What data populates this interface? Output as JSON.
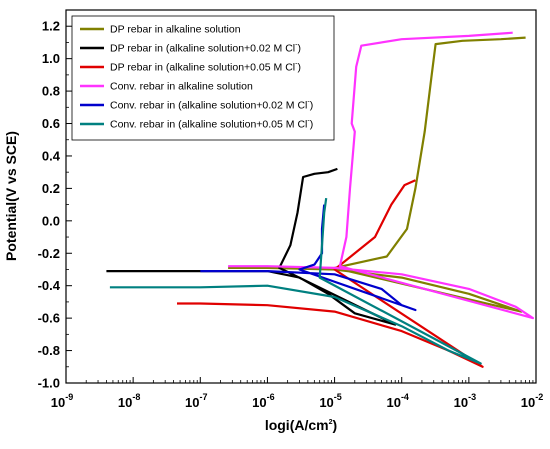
{
  "chart_data": {
    "type": "line",
    "xlabel": "logi(A/cm",
    "xlabel_sup": "2",
    "xlabel_tail": ")",
    "ylabel": "Potential(V vs SCE)",
    "x_scale": "log",
    "xlim": [
      1e-09,
      0.01
    ],
    "ylim": [
      -1.0,
      1.3
    ],
    "x_ticks": [
      1e-09,
      1e-08,
      1e-07,
      1e-06,
      1e-05,
      0.0001,
      0.001,
      0.01
    ],
    "x_tick_base": "10",
    "x_tick_exps": [
      "-9",
      "-8",
      "-7",
      "-6",
      "-5",
      "-4",
      "-3",
      "-2"
    ],
    "y_ticks": [
      -1.0,
      -0.8,
      -0.6,
      -0.4,
      -0.2,
      0.0,
      0.2,
      0.4,
      0.6,
      0.8,
      1.0,
      1.2
    ],
    "y_tick_labels": [
      "-1.0",
      "-0.8",
      "-0.6",
      "-0.4",
      "-0.2",
      "0.0",
      "0.2",
      "0.4",
      "0.6",
      "0.8",
      "1.0",
      "1.2"
    ],
    "grid": false,
    "legend_position": "top-left",
    "series": [
      {
        "name": "DP rebar in alkaline solution",
        "color": "#808000",
        "points": [
          [
            2.6e-07,
            -0.29
          ],
          [
            1e-06,
            -0.29
          ],
          [
            1e-05,
            -0.3
          ],
          [
            0.0001,
            -0.35
          ],
          [
            0.001,
            -0.45
          ],
          [
            0.006,
            -0.56
          ],
          [
            1e-05,
            -0.29
          ],
          [
            6e-05,
            -0.22
          ],
          [
            0.00012,
            -0.05
          ],
          [
            0.00016,
            0.2
          ],
          [
            0.00022,
            0.55
          ],
          [
            0.00028,
            0.9
          ],
          [
            0.00032,
            1.09
          ],
          [
            0.0008,
            1.11
          ],
          [
            0.003,
            1.12
          ],
          [
            0.007,
            1.13
          ]
        ]
      },
      {
        "name": "DP  rebar in (alkaline solution+0.02 M Cl",
        "name_sup": "-",
        "name_tail": ")",
        "color": "#000000",
        "points": [
          [
            4e-09,
            -0.31
          ],
          [
            1e-08,
            -0.31
          ],
          [
            1e-07,
            -0.31
          ],
          [
            1e-06,
            -0.31
          ],
          [
            3e-06,
            -0.35
          ],
          [
            8e-06,
            -0.45
          ],
          [
            2e-05,
            -0.57
          ],
          [
            8e-05,
            -0.64
          ],
          [
            1.5e-06,
            -0.29
          ],
          [
            2.2e-06,
            -0.15
          ],
          [
            2.8e-06,
            0.05
          ],
          [
            3.4e-06,
            0.27
          ],
          [
            5e-06,
            0.29
          ],
          [
            8e-06,
            0.3
          ],
          [
            1.1e-05,
            0.32
          ]
        ]
      },
      {
        "name": "DP  rebar in (alkaline solution+0.05 M Cl",
        "name_sup": "-",
        "name_tail": ")",
        "color": "#e00000",
        "points": [
          [
            4.5e-08,
            -0.51
          ],
          [
            1e-07,
            -0.51
          ],
          [
            1e-06,
            -0.52
          ],
          [
            1e-05,
            -0.56
          ],
          [
            0.0001,
            -0.68
          ],
          [
            0.0005,
            -0.8
          ],
          [
            0.0016,
            -0.9
          ],
          [
            1e-05,
            -0.3
          ],
          [
            4e-05,
            -0.1
          ],
          [
            7e-05,
            0.1
          ],
          [
            0.00011,
            0.22
          ],
          [
            0.00016,
            0.25
          ]
        ]
      },
      {
        "name": "Conv. rebar in alkaline solution",
        "color": "#ff33ff",
        "points": [
          [
            2.6e-07,
            -0.28
          ],
          [
            1e-06,
            -0.28
          ],
          [
            1e-05,
            -0.29
          ],
          [
            0.0001,
            -0.33
          ],
          [
            0.001,
            -0.42
          ],
          [
            0.005,
            -0.53
          ],
          [
            0.009,
            -0.6
          ],
          [
            1.2e-05,
            -0.28
          ],
          [
            1.5e-05,
            -0.1
          ],
          [
            1.7e-05,
            0.2
          ],
          [
            2e-05,
            0.55
          ],
          [
            1.8e-05,
            0.6
          ],
          [
            2.1e-05,
            0.95
          ],
          [
            2.5e-05,
            1.08
          ],
          [
            0.0001,
            1.12
          ],
          [
            0.001,
            1.14
          ],
          [
            0.0045,
            1.16
          ]
        ]
      },
      {
        "name": "Conv. rebar in (alkaline solution+0.02 M Cl",
        "name_sup": "-",
        "name_tail": ")",
        "color": "#0000cc",
        "points": [
          [
            1e-07,
            -0.31
          ],
          [
            1e-06,
            -0.31
          ],
          [
            1e-05,
            -0.33
          ],
          [
            5e-05,
            -0.42
          ],
          [
            0.0001,
            -0.52
          ],
          [
            0.00016,
            -0.55
          ],
          [
            3e-06,
            -0.3
          ],
          [
            5e-06,
            -0.27
          ],
          [
            6.5e-06,
            -0.2
          ],
          [
            6.5e-06,
            -0.05
          ],
          [
            7e-06,
            0.1
          ]
        ]
      },
      {
        "name": "Conv. rebar in (alkaline solution+0.05 M Cl",
        "name_sup": "-",
        "name_tail": ")",
        "color": "#008080",
        "points": [
          [
            4.5e-09,
            -0.41
          ],
          [
            1e-08,
            -0.41
          ],
          [
            1e-07,
            -0.41
          ],
          [
            1e-06,
            -0.4
          ],
          [
            1e-05,
            -0.47
          ],
          [
            0.0001,
            -0.65
          ],
          [
            0.0005,
            -0.8
          ],
          [
            0.0015,
            -0.88
          ],
          [
            6e-06,
            -0.35
          ],
          [
            6.5e-06,
            -0.15
          ],
          [
            7e-06,
            0.05
          ],
          [
            7.5e-06,
            0.14
          ]
        ]
      }
    ]
  }
}
